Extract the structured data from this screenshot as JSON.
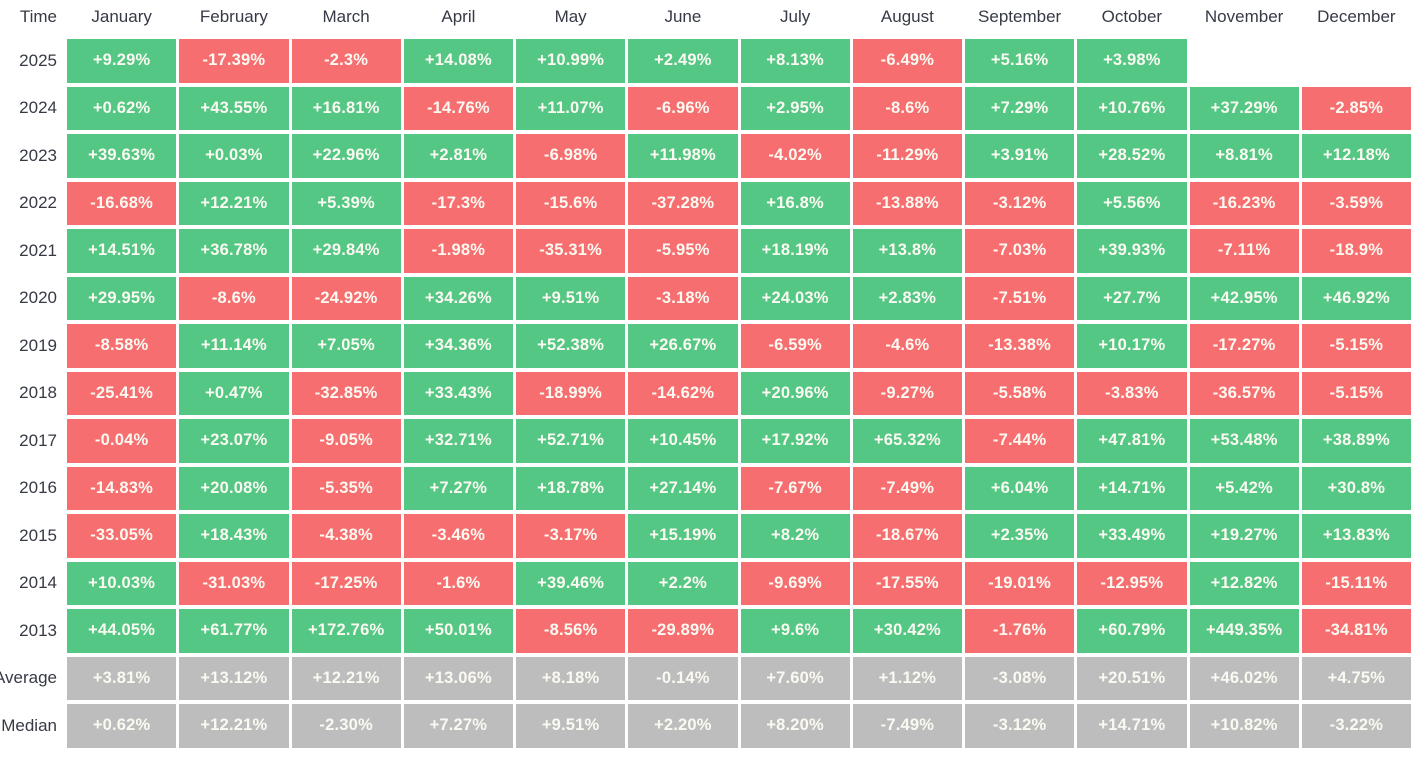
{
  "colors": {
    "positive": "#54C784",
    "negative": "#F76E70",
    "stat": "#BDBDBD",
    "cell_text": "#FBFAF2",
    "label_text": "#363A45"
  },
  "table": {
    "time_header": "Time",
    "months": [
      "January",
      "February",
      "March",
      "April",
      "May",
      "June",
      "July",
      "August",
      "September",
      "October",
      "November",
      "December"
    ],
    "rows": [
      {
        "label": "2025",
        "type": "year",
        "values": [
          "+9.29%",
          "-17.39%",
          "-2.3%",
          "+14.08%",
          "+10.99%",
          "+2.49%",
          "+8.13%",
          "-6.49%",
          "+5.16%",
          "+3.98%",
          "",
          ""
        ]
      },
      {
        "label": "2024",
        "type": "year",
        "values": [
          "+0.62%",
          "+43.55%",
          "+16.81%",
          "-14.76%",
          "+11.07%",
          "-6.96%",
          "+2.95%",
          "-8.6%",
          "+7.29%",
          "+10.76%",
          "+37.29%",
          "-2.85%"
        ]
      },
      {
        "label": "2023",
        "type": "year",
        "values": [
          "+39.63%",
          "+0.03%",
          "+22.96%",
          "+2.81%",
          "-6.98%",
          "+11.98%",
          "-4.02%",
          "-11.29%",
          "+3.91%",
          "+28.52%",
          "+8.81%",
          "+12.18%"
        ]
      },
      {
        "label": "2022",
        "type": "year",
        "values": [
          "-16.68%",
          "+12.21%",
          "+5.39%",
          "-17.3%",
          "-15.6%",
          "-37.28%",
          "+16.8%",
          "-13.88%",
          "-3.12%",
          "+5.56%",
          "-16.23%",
          "-3.59%"
        ]
      },
      {
        "label": "2021",
        "type": "year",
        "values": [
          "+14.51%",
          "+36.78%",
          "+29.84%",
          "-1.98%",
          "-35.31%",
          "-5.95%",
          "+18.19%",
          "+13.8%",
          "-7.03%",
          "+39.93%",
          "-7.11%",
          "-18.9%"
        ]
      },
      {
        "label": "2020",
        "type": "year",
        "values": [
          "+29.95%",
          "-8.6%",
          "-24.92%",
          "+34.26%",
          "+9.51%",
          "-3.18%",
          "+24.03%",
          "+2.83%",
          "-7.51%",
          "+27.7%",
          "+42.95%",
          "+46.92%"
        ]
      },
      {
        "label": "2019",
        "type": "year",
        "values": [
          "-8.58%",
          "+11.14%",
          "+7.05%",
          "+34.36%",
          "+52.38%",
          "+26.67%",
          "-6.59%",
          "-4.6%",
          "-13.38%",
          "+10.17%",
          "-17.27%",
          "-5.15%"
        ]
      },
      {
        "label": "2018",
        "type": "year",
        "values": [
          "-25.41%",
          "+0.47%",
          "-32.85%",
          "+33.43%",
          "-18.99%",
          "-14.62%",
          "+20.96%",
          "-9.27%",
          "-5.58%",
          "-3.83%",
          "-36.57%",
          "-5.15%"
        ]
      },
      {
        "label": "2017",
        "type": "year",
        "values": [
          "-0.04%",
          "+23.07%",
          "-9.05%",
          "+32.71%",
          "+52.71%",
          "+10.45%",
          "+17.92%",
          "+65.32%",
          "-7.44%",
          "+47.81%",
          "+53.48%",
          "+38.89%"
        ]
      },
      {
        "label": "2016",
        "type": "year",
        "values": [
          "-14.83%",
          "+20.08%",
          "-5.35%",
          "+7.27%",
          "+18.78%",
          "+27.14%",
          "-7.67%",
          "-7.49%",
          "+6.04%",
          "+14.71%",
          "+5.42%",
          "+30.8%"
        ]
      },
      {
        "label": "2015",
        "type": "year",
        "values": [
          "-33.05%",
          "+18.43%",
          "-4.38%",
          "-3.46%",
          "-3.17%",
          "+15.19%",
          "+8.2%",
          "-18.67%",
          "+2.35%",
          "+33.49%",
          "+19.27%",
          "+13.83%"
        ]
      },
      {
        "label": "2014",
        "type": "year",
        "values": [
          "+10.03%",
          "-31.03%",
          "-17.25%",
          "-1.6%",
          "+39.46%",
          "+2.2%",
          "-9.69%",
          "-17.55%",
          "-19.01%",
          "-12.95%",
          "+12.82%",
          "-15.11%"
        ]
      },
      {
        "label": "2013",
        "type": "year",
        "values": [
          "+44.05%",
          "+61.77%",
          "+172.76%",
          "+50.01%",
          "-8.56%",
          "-29.89%",
          "+9.6%",
          "+30.42%",
          "-1.76%",
          "+60.79%",
          "+449.35%",
          "-34.81%"
        ]
      },
      {
        "label": "Average",
        "type": "stat",
        "values": [
          "+3.81%",
          "+13.12%",
          "+12.21%",
          "+13.06%",
          "+8.18%",
          "-0.14%",
          "+7.60%",
          "+1.12%",
          "-3.08%",
          "+20.51%",
          "+46.02%",
          "+4.75%"
        ]
      },
      {
        "label": "Median",
        "type": "stat",
        "values": [
          "+0.62%",
          "+12.21%",
          "-2.30%",
          "+7.27%",
          "+9.51%",
          "+2.20%",
          "+8.20%",
          "-7.49%",
          "-3.12%",
          "+14.71%",
          "+10.82%",
          "-3.22%"
        ]
      }
    ]
  },
  "chart_data": {
    "type": "heatmap",
    "title": "",
    "xlabel": "",
    "ylabel": "Time",
    "x_labels": [
      "January",
      "February",
      "March",
      "April",
      "May",
      "June",
      "July",
      "August",
      "September",
      "October",
      "November",
      "December"
    ],
    "y_labels": [
      "2025",
      "2024",
      "2023",
      "2022",
      "2021",
      "2020",
      "2019",
      "2018",
      "2017",
      "2016",
      "2015",
      "2014",
      "2013",
      "Average",
      "Median"
    ],
    "unit": "%",
    "legend_position": "none",
    "grid": false,
    "color_rule": "green if value >= 0, red if value < 0, gray for Average/Median rows, blank if missing",
    "series": [
      {
        "name": "2025",
        "values": [
          9.29,
          -17.39,
          -2.3,
          14.08,
          10.99,
          2.49,
          8.13,
          -6.49,
          5.16,
          3.98,
          null,
          null
        ]
      },
      {
        "name": "2024",
        "values": [
          0.62,
          43.55,
          16.81,
          -14.76,
          11.07,
          -6.96,
          2.95,
          -8.6,
          7.29,
          10.76,
          37.29,
          -2.85
        ]
      },
      {
        "name": "2023",
        "values": [
          39.63,
          0.03,
          22.96,
          2.81,
          -6.98,
          11.98,
          -4.02,
          -11.29,
          3.91,
          28.52,
          8.81,
          12.18
        ]
      },
      {
        "name": "2022",
        "values": [
          -16.68,
          12.21,
          5.39,
          -17.3,
          -15.6,
          -37.28,
          16.8,
          -13.88,
          -3.12,
          5.56,
          -16.23,
          -3.59
        ]
      },
      {
        "name": "2021",
        "values": [
          14.51,
          36.78,
          29.84,
          -1.98,
          -35.31,
          -5.95,
          18.19,
          13.8,
          -7.03,
          39.93,
          -7.11,
          -18.9
        ]
      },
      {
        "name": "2020",
        "values": [
          29.95,
          -8.6,
          -24.92,
          34.26,
          9.51,
          -3.18,
          24.03,
          2.83,
          -7.51,
          27.7,
          42.95,
          46.92
        ]
      },
      {
        "name": "2019",
        "values": [
          -8.58,
          11.14,
          7.05,
          34.36,
          52.38,
          26.67,
          -6.59,
          -4.6,
          -13.38,
          10.17,
          -17.27,
          -5.15
        ]
      },
      {
        "name": "2018",
        "values": [
          -25.41,
          0.47,
          -32.85,
          33.43,
          -18.99,
          -14.62,
          20.96,
          -9.27,
          -5.58,
          -3.83,
          -36.57,
          -5.15
        ]
      },
      {
        "name": "2017",
        "values": [
          -0.04,
          23.07,
          -9.05,
          32.71,
          52.71,
          10.45,
          17.92,
          65.32,
          -7.44,
          47.81,
          53.48,
          38.89
        ]
      },
      {
        "name": "2016",
        "values": [
          -14.83,
          20.08,
          -5.35,
          7.27,
          18.78,
          27.14,
          -7.67,
          -7.49,
          6.04,
          14.71,
          5.42,
          30.8
        ]
      },
      {
        "name": "2015",
        "values": [
          -33.05,
          18.43,
          -4.38,
          -3.46,
          -3.17,
          15.19,
          8.2,
          -18.67,
          2.35,
          33.49,
          19.27,
          13.83
        ]
      },
      {
        "name": "2014",
        "values": [
          10.03,
          -31.03,
          -17.25,
          -1.6,
          39.46,
          2.2,
          -9.69,
          -17.55,
          -19.01,
          -12.95,
          12.82,
          -15.11
        ]
      },
      {
        "name": "2013",
        "values": [
          44.05,
          61.77,
          172.76,
          50.01,
          -8.56,
          -29.89,
          9.6,
          30.42,
          -1.76,
          60.79,
          449.35,
          -34.81
        ]
      },
      {
        "name": "Average",
        "values": [
          3.81,
          13.12,
          12.21,
          13.06,
          8.18,
          -0.14,
          7.6,
          1.12,
          -3.08,
          20.51,
          46.02,
          4.75
        ]
      },
      {
        "name": "Median",
        "values": [
          0.62,
          12.21,
          -2.3,
          7.27,
          9.51,
          2.2,
          8.2,
          -7.49,
          -3.12,
          14.71,
          10.82,
          -3.22
        ]
      }
    ]
  }
}
